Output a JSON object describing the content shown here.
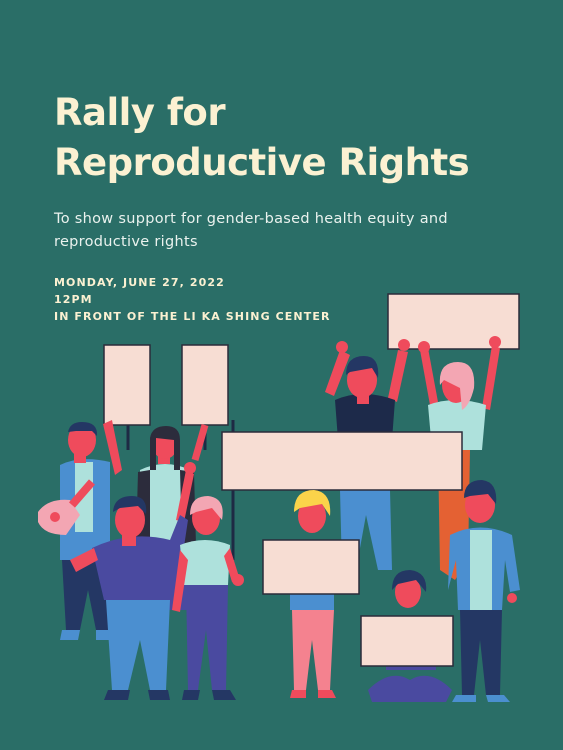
{
  "poster": {
    "title_line1": "Rally for",
    "title_line2": "Reproductive Rights",
    "subtitle": "To show support for gender-based health equity and reproductive rights",
    "date": "MONDAY, JUNE 27, 2022",
    "time": "12PM",
    "location": "IN FRONT OF THE LI KA SHING CENTER"
  },
  "colors": {
    "background": "#2a6e67",
    "title": "#fbf1d2",
    "sign": "#f7ddd3",
    "skin": "#ef4b5c",
    "hair_dark": "#243764",
    "hair_pink": "#f3a6b3",
    "hair_yellow": "#fbd34a",
    "shirt_blue": "#4b8fd0",
    "shirt_purple": "#4a4aa0",
    "shirt_mint": "#aee1dc",
    "pants_pink": "#f4828f",
    "pants_orange": "#e46133"
  },
  "illustration": {
    "subject": "group of protesters holding blank signs"
  }
}
